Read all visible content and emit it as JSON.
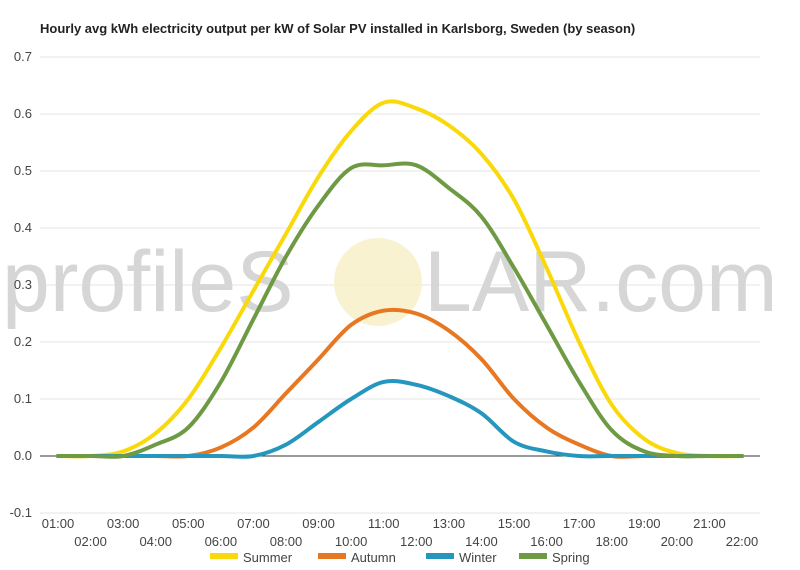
{
  "watermark": {
    "text_left": "profileS",
    "text_right": "LAR.com"
  },
  "chart_data": {
    "type": "line",
    "title": "Hourly avg kWh electricity output per kW of Solar PV installed in Karlsborg, Sweden (by season)",
    "xlabel": "",
    "ylabel": "",
    "ylim": [
      -0.1,
      0.7
    ],
    "yticks": [
      "-0.1",
      "0.0",
      "0.1",
      "0.2",
      "0.3",
      "0.4",
      "0.5",
      "0.6",
      "0.7"
    ],
    "grid": true,
    "legend": "bottom",
    "x": [
      "01:00",
      "02:00",
      "03:00",
      "04:00",
      "05:00",
      "06:00",
      "07:00",
      "08:00",
      "09:00",
      "10:00",
      "11:00",
      "12:00",
      "13:00",
      "14:00",
      "15:00",
      "16:00",
      "17:00",
      "18:00",
      "19:00",
      "20:00",
      "21:00",
      "22:00"
    ],
    "series": [
      {
        "name": "Summer",
        "color": "#f9d90a",
        "values": [
          0.0,
          0.0,
          0.008,
          0.04,
          0.1,
          0.19,
          0.29,
          0.39,
          0.49,
          0.57,
          0.62,
          0.61,
          0.58,
          0.53,
          0.45,
          0.33,
          0.2,
          0.09,
          0.03,
          0.005,
          0.0,
          0.0
        ]
      },
      {
        "name": "Autumn",
        "color": "#e87722",
        "values": [
          0.0,
          0.0,
          0.0,
          0.0,
          0.0,
          0.015,
          0.05,
          0.11,
          0.17,
          0.23,
          0.255,
          0.25,
          0.22,
          0.17,
          0.1,
          0.05,
          0.02,
          0.0,
          0.0,
          0.0,
          0.0,
          0.0
        ]
      },
      {
        "name": "Winter",
        "color": "#2596be",
        "values": [
          0.0,
          0.0,
          0.0,
          0.0,
          0.0,
          0.0,
          0.0,
          0.02,
          0.06,
          0.1,
          0.13,
          0.125,
          0.105,
          0.075,
          0.025,
          0.008,
          0.0,
          0.0,
          0.0,
          0.0,
          0.0,
          0.0
        ]
      },
      {
        "name": "Spring",
        "color": "#6e9a44",
        "values": [
          0.0,
          0.0,
          0.0,
          0.02,
          0.05,
          0.13,
          0.24,
          0.35,
          0.44,
          0.505,
          0.51,
          0.51,
          0.47,
          0.42,
          0.33,
          0.23,
          0.13,
          0.045,
          0.008,
          0.0,
          0.0,
          0.0
        ]
      }
    ]
  }
}
